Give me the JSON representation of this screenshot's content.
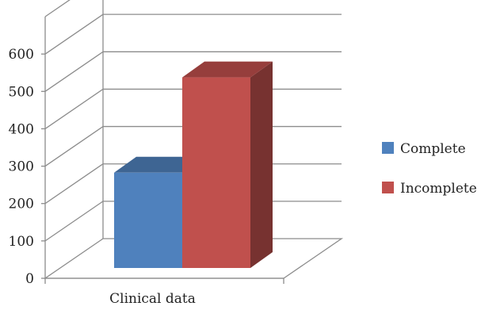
{
  "chart_data": {
    "type": "bar",
    "style": "3d",
    "categories": [
      "Clinical data"
    ],
    "series": [
      {
        "name": "Complete",
        "values": [
          255
        ],
        "color": "#4F81BD"
      },
      {
        "name": "Incomplete",
        "values": [
          510
        ],
        "color": "#C0504D"
      }
    ],
    "ylim": [
      0,
      700
    ],
    "y_ticks": [
      "0",
      "100",
      "200",
      "300",
      "400",
      "500",
      "600"
    ],
    "grid": true,
    "legend_position": "right",
    "xlabel": "",
    "ylabel": "",
    "title": ""
  }
}
